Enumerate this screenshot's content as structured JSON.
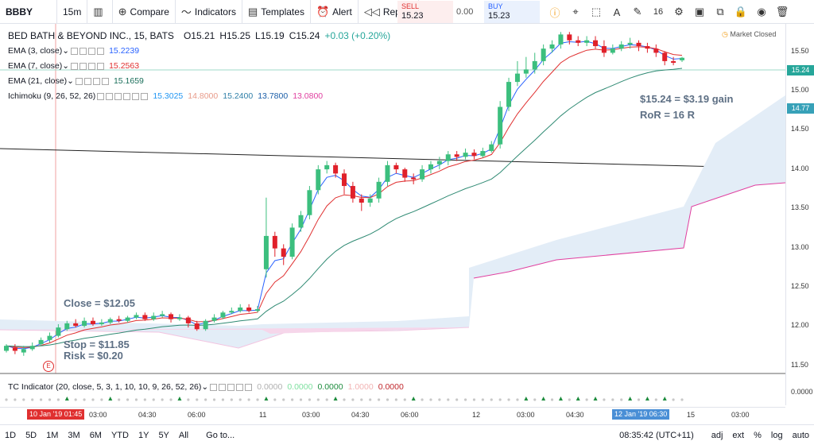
{
  "toolbar": {
    "symbol": "BBBY",
    "interval": "15m",
    "compare": "Compare",
    "indicators": "Indicators",
    "templates": "Templates",
    "alert": "Alert",
    "replay": "Replay",
    "sell_label": "SELL",
    "sell_price": "15.23",
    "spread": "0.00",
    "buy_label": "BUY",
    "buy_price": "15.23",
    "font_size": "16"
  },
  "legend": {
    "title": "BED BATH & BEYOND INC., 15, BATS",
    "o": "O15.21",
    "h": "H15.25",
    "l": "L15.19",
    "c": "C15.24",
    "chg": "+0.03 (+0.20%)",
    "market": "Market Closed"
  },
  "indicators": [
    {
      "label": "EMA (3, close)",
      "v1": "15.2239",
      "color": "#2962ff"
    },
    {
      "label": "EMA (7, close)",
      "v1": "15.2563",
      "color": "#e03030"
    },
    {
      "label": "EMA (21, close)",
      "v1": "15.1659",
      "color": "#1a6e5a"
    }
  ],
  "ichimoku": {
    "label": "Ichimoku (9, 26, 52, 26)",
    "vals": [
      "15.3025",
      "14.8000",
      "15.2400",
      "13.7800",
      "13.0800"
    ],
    "colors": [
      "#2196f3",
      "#e89b8a",
      "#2f7fa8",
      "#1b5ea8",
      "#e040a0"
    ]
  },
  "tc": {
    "label": "TC Indicator (20, close, 5, 3, 1, 10, 10, 9, 26, 52, 26)",
    "vals": [
      "0.0000",
      "0.0000",
      "0.0000",
      "1.0000",
      "0.0000"
    ],
    "colors": [
      "#b0b0b0",
      "#7fe0a0",
      "#1e8c3e",
      "#f2b4b4",
      "#c0282d"
    ]
  },
  "yaxis": [
    "15.50",
    "15.00",
    "14.50",
    "14.00",
    "13.50",
    "13.00",
    "12.50",
    "12.00",
    "11.50"
  ],
  "price_label": "15.24",
  "cloud_label": "14.77",
  "tc_axis": "0.0000",
  "annotations": {
    "close": "Close = $12.05",
    "stop": "Stop = $11.85",
    "risk": "Risk = $0.20",
    "gain": "$15.24 = $3.19 gain",
    "ror": "RoR = 16 R",
    "e": "E"
  },
  "xaxis": {
    "left_date": "10 Jan '19",
    "left_time": "01:45",
    "right_date": "12 Jan '19",
    "right_time": "06:30",
    "ticks": [
      "03:00",
      "04:30",
      "06:00",
      "11",
      "03:00",
      "04:30",
      "06:00",
      "12",
      "03:00",
      "04:30",
      "15",
      "03:00"
    ]
  },
  "bottom": {
    "ranges": [
      "1D",
      "5D",
      "1M",
      "3M",
      "6M",
      "YTD",
      "1Y",
      "5Y",
      "All"
    ],
    "goto": "Go to...",
    "time": "08:35:42 (UTC+11)",
    "adj": "adj",
    "ext": "ext",
    "pct": "%",
    "log": "log",
    "auto": "auto"
  },
  "chart_data": {
    "type": "candlestick",
    "ylim": [
      11.4,
      15.6
    ],
    "candles": [
      [
        11.72,
        11.78,
        11.7,
        11.8
      ],
      [
        11.76,
        11.72,
        11.68,
        11.8
      ],
      [
        11.7,
        11.74,
        11.66,
        11.78
      ],
      [
        11.74,
        11.78,
        11.72,
        11.82
      ],
      [
        11.8,
        11.85,
        11.78,
        11.88
      ],
      [
        11.85,
        11.9,
        11.82,
        11.94
      ],
      [
        11.9,
        12.0,
        11.88,
        12.04
      ],
      [
        11.98,
        12.05,
        11.96,
        12.08
      ],
      [
        12.05,
        12.02,
        12.0,
        12.1
      ],
      [
        12.02,
        12.08,
        12.0,
        12.12
      ],
      [
        12.08,
        12.04,
        12.02,
        12.12
      ],
      [
        12.04,
        12.06,
        12.02,
        12.1
      ],
      [
        12.06,
        12.1,
        12.04,
        12.12
      ],
      [
        12.1,
        12.08,
        12.06,
        12.14
      ],
      [
        12.08,
        12.12,
        12.06,
        12.14
      ],
      [
        12.12,
        12.15,
        12.1,
        12.18
      ],
      [
        12.15,
        12.1,
        12.08,
        12.18
      ],
      [
        12.1,
        12.14,
        12.08,
        12.18
      ],
      [
        12.14,
        12.16,
        12.12,
        12.2
      ],
      [
        12.16,
        12.1,
        12.06,
        12.18
      ],
      [
        12.1,
        12.12,
        12.08,
        12.16
      ],
      [
        12.12,
        12.05,
        12.0,
        12.14
      ],
      [
        12.05,
        11.98,
        11.96,
        12.08
      ],
      [
        11.98,
        12.08,
        11.96,
        12.1
      ],
      [
        12.08,
        12.12,
        12.06,
        12.16
      ],
      [
        12.12,
        12.18,
        12.1,
        12.2
      ],
      [
        12.18,
        12.2,
        12.16,
        12.24
      ],
      [
        12.2,
        12.24,
        12.18,
        12.28
      ],
      [
        12.24,
        12.2,
        12.18,
        12.28
      ],
      [
        12.2,
        12.22,
        12.18,
        12.26
      ],
      [
        12.7,
        13.1,
        12.6,
        13.56
      ],
      [
        13.1,
        12.95,
        12.85,
        13.15
      ],
      [
        12.95,
        12.85,
        12.75,
        13.0
      ],
      [
        12.85,
        13.2,
        12.82,
        13.25
      ],
      [
        13.2,
        13.35,
        13.15,
        13.4
      ],
      [
        13.35,
        13.65,
        13.3,
        13.7
      ],
      [
        13.65,
        13.9,
        13.6,
        13.95
      ],
      [
        13.9,
        13.95,
        13.85,
        14.0
      ],
      [
        13.95,
        13.85,
        13.8,
        13.98
      ],
      [
        13.85,
        13.7,
        13.6,
        13.9
      ],
      [
        13.7,
        13.55,
        13.5,
        13.75
      ],
      [
        13.55,
        13.5,
        13.4,
        13.6
      ],
      [
        13.5,
        13.55,
        13.45,
        13.6
      ],
      [
        13.55,
        13.75,
        13.5,
        13.8
      ],
      [
        13.75,
        13.95,
        13.7,
        14.0
      ],
      [
        13.95,
        13.9,
        13.85,
        13.98
      ],
      [
        13.9,
        13.8,
        13.75,
        13.92
      ],
      [
        13.8,
        13.78,
        13.72,
        13.85
      ],
      [
        13.78,
        13.9,
        13.75,
        13.95
      ],
      [
        13.9,
        13.96,
        13.85,
        14.0
      ],
      [
        13.96,
        14.0,
        13.9,
        14.05
      ],
      [
        14.0,
        14.08,
        13.95,
        14.12
      ],
      [
        14.08,
        14.05,
        14.0,
        14.12
      ],
      [
        14.05,
        14.1,
        14.02,
        14.15
      ],
      [
        14.1,
        14.06,
        14.02,
        14.14
      ],
      [
        14.06,
        14.12,
        14.04,
        14.16
      ],
      [
        14.12,
        14.2,
        14.1,
        14.24
      ],
      [
        14.2,
        14.65,
        14.15,
        14.72
      ],
      [
        14.65,
        14.95,
        14.6,
        15.0
      ],
      [
        14.95,
        15.05,
        14.9,
        15.2
      ],
      [
        15.05,
        15.1,
        15.0,
        15.25
      ],
      [
        15.1,
        15.2,
        15.05,
        15.3
      ],
      [
        15.2,
        15.35,
        15.15,
        15.4
      ],
      [
        15.35,
        15.4,
        15.3,
        15.45
      ],
      [
        15.4,
        15.52,
        15.35,
        15.55
      ],
      [
        15.52,
        15.45,
        15.4,
        15.55
      ],
      [
        15.45,
        15.42,
        15.38,
        15.5
      ],
      [
        15.42,
        15.45,
        15.38,
        15.5
      ],
      [
        15.45,
        15.38,
        15.35,
        15.5
      ],
      [
        15.38,
        15.3,
        15.25,
        15.45
      ],
      [
        15.3,
        15.35,
        15.28,
        15.4
      ],
      [
        15.35,
        15.4,
        15.32,
        15.44
      ],
      [
        15.4,
        15.42,
        15.35,
        15.48
      ],
      [
        15.42,
        15.38,
        15.32,
        15.45
      ],
      [
        15.38,
        15.35,
        15.3,
        15.42
      ],
      [
        15.35,
        15.3,
        15.25,
        15.4
      ],
      [
        15.3,
        15.2,
        15.15,
        15.32
      ],
      [
        15.2,
        15.18,
        15.15,
        15.25
      ],
      [
        15.21,
        15.24,
        15.19,
        15.25
      ]
    ]
  }
}
